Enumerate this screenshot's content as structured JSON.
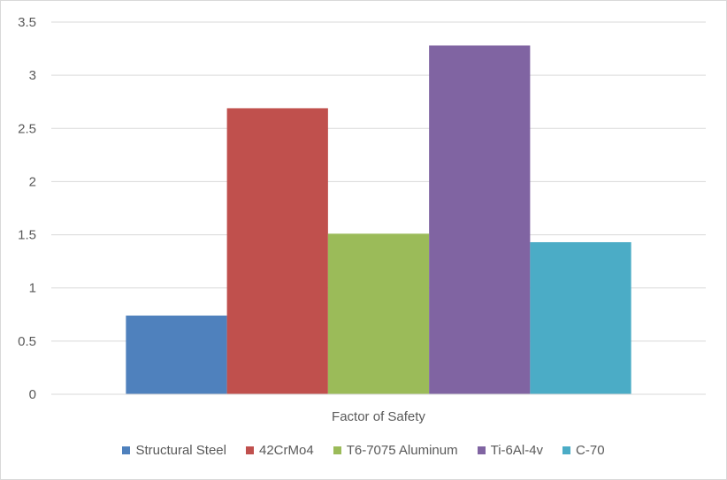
{
  "chart_data": {
    "type": "bar",
    "categories": [
      "Factor of Safety"
    ],
    "series": [
      {
        "name": "Structural Steel",
        "values": [
          0.74
        ],
        "color": "#4f81bd"
      },
      {
        "name": "42CrMo4",
        "values": [
          2.69
        ],
        "color": "#c0504d"
      },
      {
        "name": "T6-7075 Aluminum",
        "values": [
          1.51
        ],
        "color": "#9bbb59"
      },
      {
        "name": "Ti-6Al-4v",
        "values": [
          3.28
        ],
        "color": "#8064a2"
      },
      {
        "name": "C-70",
        "values": [
          1.43
        ],
        "color": "#4bacc6"
      }
    ],
    "yticks": [
      "0",
      "0.5",
      "1",
      "1.5",
      "2",
      "2.5",
      "3",
      "3.5"
    ],
    "ylim": [
      0,
      3.5
    ],
    "grid": true,
    "legend_position": "bottom"
  }
}
